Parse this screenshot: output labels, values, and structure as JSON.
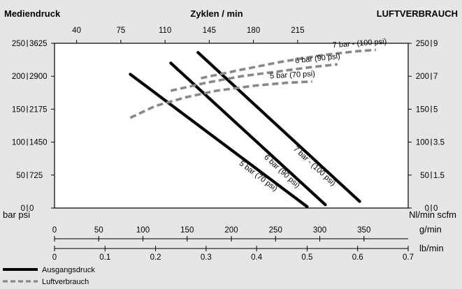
{
  "chart_data": {
    "type": "line",
    "titles": {
      "left": "Mediendruck",
      "center": "Zyklen / min",
      "right": "LUFTVERBRAUCH"
    },
    "axes": {
      "cycles_top": {
        "ticks": [
          "40",
          "75",
          "110",
          "145",
          "180",
          "215"
        ]
      },
      "left_bar": {
        "ticks": [
          "0",
          "50",
          "100",
          "150",
          "200",
          "250"
        ],
        "ylim": [
          0,
          250
        ]
      },
      "left_psi": {
        "ticks": [
          "0",
          "725",
          "1450",
          "2175",
          "2900",
          "3625"
        ]
      },
      "right_nlmin": {
        "ticks": [
          "0",
          "50",
          "100",
          "150",
          "200",
          "250"
        ]
      },
      "right_scfm": {
        "ticks": [
          "0",
          "1.5",
          "3.5",
          "5",
          "7",
          "9"
        ]
      },
      "bottom_gmin": {
        "ticks": [
          "0",
          "50",
          "100",
          "150",
          "200",
          "250",
          "300",
          "350"
        ],
        "xlim": [
          0,
          350
        ],
        "unit": "g/min"
      },
      "bottom_lbmin": {
        "ticks": [
          "0",
          "0.1",
          "0.2",
          "0.3",
          "0.4",
          "0.5",
          "0.6",
          "0.7"
        ],
        "unit": "lb/min"
      }
    },
    "unit_labels": {
      "left": "bar psi",
      "right": "Nl/min scfm"
    },
    "series": [
      {
        "name": "5 bar (70 psi)",
        "kind": "pressure",
        "x": [
          75,
          250
        ],
        "y": [
          203,
          2
        ]
      },
      {
        "name": "6 bar (90 psi)",
        "kind": "pressure",
        "x": [
          115,
          268
        ],
        "y": [
          220,
          5
        ]
      },
      {
        "name": "7 bar - (100 psi)",
        "kind": "pressure",
        "x": [
          142,
          302
        ],
        "y": [
          236,
          10
        ]
      },
      {
        "name": "5 bar (70 psi)",
        "kind": "air",
        "x": [
          75,
          100,
          130,
          160,
          200,
          230,
          255
        ],
        "y": [
          137,
          155,
          168,
          178,
          186,
          190,
          192
        ]
      },
      {
        "name": "6 bar (90 psi)",
        "kind": "air",
        "x": [
          115,
          150,
          185,
          220,
          255,
          280
        ],
        "y": [
          178,
          190,
          200,
          207,
          214,
          218
        ]
      },
      {
        "name": "7 bar - (100 psi)",
        "kind": "air",
        "x": [
          145,
          185,
          225,
          265,
          300,
          318
        ],
        "y": [
          197,
          210,
          222,
          232,
          238,
          240
        ]
      }
    ],
    "legend": [
      {
        "label": "Ausgangsdruck",
        "style": "solid"
      },
      {
        "label": "Luftverbrauch",
        "style": "dashed"
      }
    ],
    "colors": {
      "pressure": "#000000",
      "air": "#888888",
      "plot_bg": "#ffffff",
      "page_bg": "#e6e6e6"
    }
  }
}
